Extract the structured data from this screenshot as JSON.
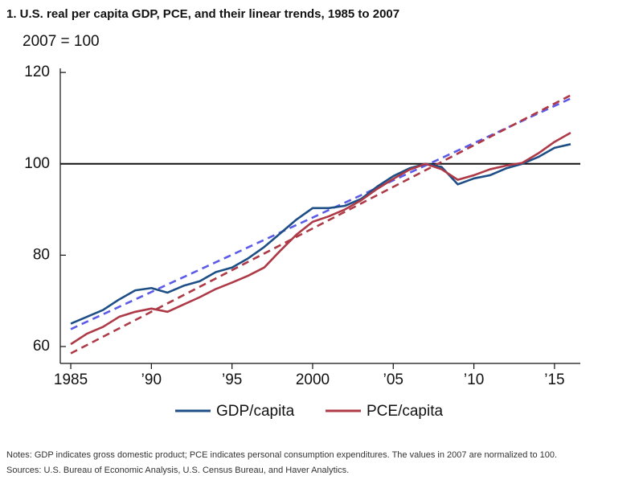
{
  "chart_data": {
    "type": "line",
    "title": "1. U.S. real per capita GDP, PCE, and their linear trends, 1985 to 2007",
    "subtitle": "2007 = 100",
    "notes": [
      "Notes: GDP indicates gross domestic product; PCE indicates personal consumption expenditures. The values in 2007 are normalized to 100.",
      "Sources: U.S. Bureau of Economic Analysis, U.S. Census Bureau, and Haver Analytics."
    ],
    "x": [
      1985,
      1986,
      1987,
      1988,
      1989,
      1990,
      1991,
      1992,
      1993,
      1994,
      1995,
      1996,
      1997,
      1998,
      1999,
      2000,
      2001,
      2002,
      2003,
      2004,
      2005,
      2006,
      2007,
      2008,
      2009,
      2010,
      2011,
      2012,
      2013,
      2014,
      2015,
      2016
    ],
    "series": [
      {
        "name": "GDP/capita",
        "color": "#1d4f86",
        "values": [
          65,
          66.5,
          68,
          70.3,
          72.3,
          72.8,
          71.8,
          73.3,
          74.3,
          76.3,
          77.3,
          79.3,
          81.8,
          84.8,
          87.8,
          90.3,
          90.3,
          90.8,
          92.3,
          95,
          97.3,
          99,
          100,
          99.3,
          95.5,
          96.8,
          97.5,
          99,
          100,
          101.5,
          103.5,
          104.3
        ]
      },
      {
        "name": "PCE/capita",
        "color": "#ad3a46",
        "values": [
          60.5,
          62.8,
          64.3,
          66.5,
          67.6,
          68.3,
          67.6,
          69.2,
          70.8,
          72.6,
          74,
          75.5,
          77.3,
          81,
          84.5,
          87.3,
          88.5,
          90,
          92,
          94.5,
          96.7,
          98.7,
          100,
          98.8,
          96.5,
          97.5,
          98.8,
          99.6,
          100.2,
          102.3,
          104.8,
          106.8
        ]
      }
    ],
    "trends": [
      {
        "color": "#5b5be8",
        "dashed": true,
        "x": [
          1985,
          2016
        ],
        "values": [
          63.8,
          114.3
        ]
      },
      {
        "color": "#ad3a46",
        "dashed": true,
        "x": [
          1985,
          2016
        ],
        "values": [
          58.5,
          115
        ]
      }
    ],
    "reference_line": 100,
    "xlim": [
      1984.35,
      2016.6
    ],
    "xticks": [
      {
        "value": 1985,
        "label": "1985"
      },
      {
        "value": 1990,
        "label": "’90"
      },
      {
        "value": 1995,
        "label": "’95"
      },
      {
        "value": 2000,
        "label": "2000"
      },
      {
        "value": 2005,
        "label": "’05"
      },
      {
        "value": 2010,
        "label": "’10"
      },
      {
        "value": 2015,
        "label": "’15"
      }
    ],
    "ylim": [
      56.3,
      120.9
    ],
    "yticks": [
      60,
      80,
      100,
      120
    ]
  }
}
